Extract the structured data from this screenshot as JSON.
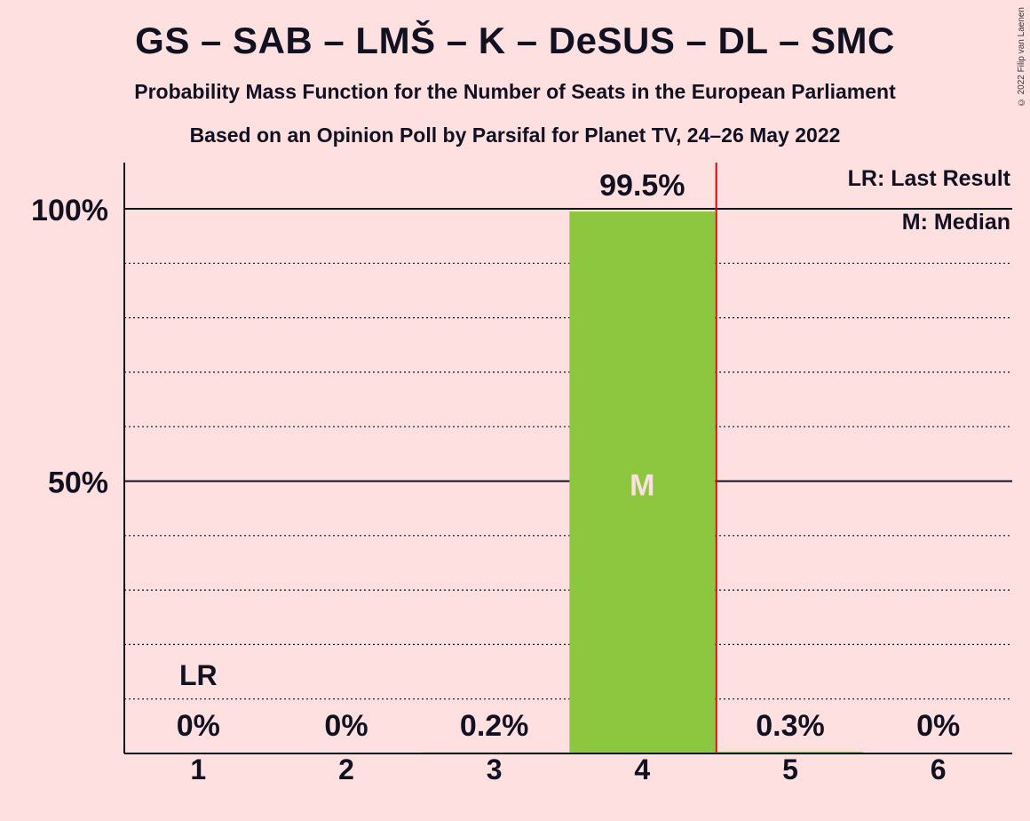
{
  "title": "GS – SAB – LMŠ – K – DeSUS – DL – SMC",
  "subtitle": "Probability Mass Function for the Number of Seats in the European Parliament",
  "subtitle2": "Based on an Opinion Poll by Parsifal for Planet TV, 24–26 May 2022",
  "copyright": "© 2022 Filip van Laenen",
  "legend": {
    "last_result": "LR: Last Result",
    "median": "M: Median"
  },
  "colors": {
    "background": "#FFE0E0",
    "bar": "#8DC63F",
    "last_result_line": "#E00000",
    "text": "#111122"
  },
  "chart_data": {
    "type": "bar",
    "categories": [
      "1",
      "2",
      "3",
      "4",
      "5",
      "6"
    ],
    "values": [
      0,
      0,
      0.2,
      99.5,
      0.3,
      0
    ],
    "value_labels": [
      "0%",
      "0%",
      "0.2%",
      "99.5%",
      "0.3%",
      "0%"
    ],
    "ylim": [
      0,
      110
    ],
    "y_ticks": [
      {
        "value": 50,
        "label": "50%"
      },
      {
        "value": 100,
        "label": "100%"
      }
    ],
    "minor_gridlines": [
      10,
      20,
      30,
      40,
      60,
      70,
      80,
      90
    ],
    "median_category": "4",
    "median_label": "M",
    "last_result_category": "1",
    "last_result_label": "LR",
    "majority_line_after": "4"
  }
}
